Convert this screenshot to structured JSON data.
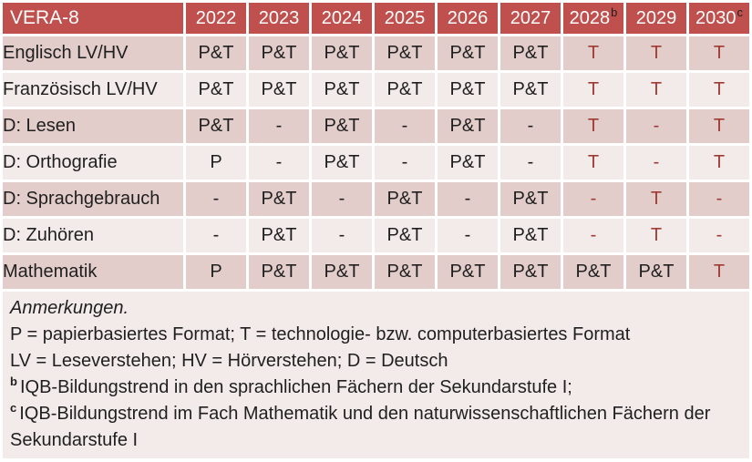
{
  "colors": {
    "header_bg": "#C0504D",
    "header_text": "#ffffff",
    "sup_text": "#1f1f1f",
    "band_dark": "#E2CDCA",
    "band_light": "#F3EBE9",
    "accent_red": "#A03A34",
    "body_text": "#1f1f1f"
  },
  "table": {
    "corner_label": "VERA-8",
    "years": [
      {
        "label": "2022",
        "sup": ""
      },
      {
        "label": "2023",
        "sup": ""
      },
      {
        "label": "2024",
        "sup": ""
      },
      {
        "label": "2025",
        "sup": ""
      },
      {
        "label": "2026",
        "sup": ""
      },
      {
        "label": "2027",
        "sup": ""
      },
      {
        "label": "2028",
        "sup": "b"
      },
      {
        "label": "2029",
        "sup": ""
      },
      {
        "label": "2030",
        "sup": "c"
      }
    ],
    "rows": [
      {
        "label": "Englisch LV/HV",
        "cells": [
          {
            "v": "P&T",
            "red": false
          },
          {
            "v": "P&T",
            "red": false
          },
          {
            "v": "P&T",
            "red": false
          },
          {
            "v": "P&T",
            "red": false
          },
          {
            "v": "P&T",
            "red": false
          },
          {
            "v": "P&T",
            "red": false
          },
          {
            "v": "T",
            "red": true
          },
          {
            "v": "T",
            "red": true
          },
          {
            "v": "T",
            "red": true
          }
        ]
      },
      {
        "label": "Französisch LV/HV",
        "cells": [
          {
            "v": "P&T",
            "red": false
          },
          {
            "v": "P&T",
            "red": false
          },
          {
            "v": "P&T",
            "red": false
          },
          {
            "v": "P&T",
            "red": false
          },
          {
            "v": "P&T",
            "red": false
          },
          {
            "v": "P&T",
            "red": false
          },
          {
            "v": "T",
            "red": true
          },
          {
            "v": "T",
            "red": true
          },
          {
            "v": "T",
            "red": true
          }
        ]
      },
      {
        "label": "D: Lesen",
        "cells": [
          {
            "v": "P&T",
            "red": false
          },
          {
            "v": "-",
            "red": false
          },
          {
            "v": "P&T",
            "red": false
          },
          {
            "v": "-",
            "red": false
          },
          {
            "v": "P&T",
            "red": false
          },
          {
            "v": "-",
            "red": false
          },
          {
            "v": "T",
            "red": true
          },
          {
            "v": "-",
            "red": true
          },
          {
            "v": "T",
            "red": true
          }
        ]
      },
      {
        "label": "D: Orthografie",
        "cells": [
          {
            "v": "P",
            "red": false
          },
          {
            "v": "-",
            "red": false
          },
          {
            "v": "P&T",
            "red": false
          },
          {
            "v": "-",
            "red": false
          },
          {
            "v": "P&T",
            "red": false
          },
          {
            "v": "-",
            "red": false
          },
          {
            "v": "T",
            "red": true
          },
          {
            "v": "-",
            "red": true
          },
          {
            "v": "T",
            "red": true
          }
        ]
      },
      {
        "label": "D: Sprachgebrauch",
        "cells": [
          {
            "v": "-",
            "red": false
          },
          {
            "v": "P&T",
            "red": false
          },
          {
            "v": "-",
            "red": false
          },
          {
            "v": "P&T",
            "red": false
          },
          {
            "v": "-",
            "red": false
          },
          {
            "v": "P&T",
            "red": false
          },
          {
            "v": "-",
            "red": true
          },
          {
            "v": "T",
            "red": true
          },
          {
            "v": "-",
            "red": true
          }
        ]
      },
      {
        "label": "D: Zuhören",
        "cells": [
          {
            "v": "-",
            "red": false
          },
          {
            "v": "P&T",
            "red": false
          },
          {
            "v": "-",
            "red": false
          },
          {
            "v": "P&T",
            "red": false
          },
          {
            "v": "-",
            "red": false
          },
          {
            "v": "P&T",
            "red": false
          },
          {
            "v": "-",
            "red": true
          },
          {
            "v": "T",
            "red": true
          },
          {
            "v": "-",
            "red": true
          }
        ]
      },
      {
        "label": "Mathematik",
        "cells": [
          {
            "v": "P",
            "red": false
          },
          {
            "v": "P&T",
            "red": false
          },
          {
            "v": "P&T",
            "red": false
          },
          {
            "v": "P&T",
            "red": false
          },
          {
            "v": "P&T",
            "red": false
          },
          {
            "v": "P&T",
            "red": false
          },
          {
            "v": "P&T",
            "red": false
          },
          {
            "v": "P&T",
            "red": false
          },
          {
            "v": "T",
            "red": true
          }
        ]
      }
    ]
  },
  "notes": {
    "heading": "Anmerkungen.",
    "line_formats": "P = papierbasiertes Format; T = technologie- bzw. computerbasiertes Format",
    "line_abbreviations": "LV = Leseverstehen; HV = Hörverstehen; D = Deutsch",
    "footnote_b_sup": "b",
    "footnote_b_text": "IQB-Bildungstrend in den sprachlichen Fächern der Sekundarstufe I;",
    "footnote_c_sup": "c",
    "footnote_c_text": "IQB-Bildungstrend im Fach Mathematik und den naturwissenschaftlichen Fächern der Sekundarstufe I"
  }
}
